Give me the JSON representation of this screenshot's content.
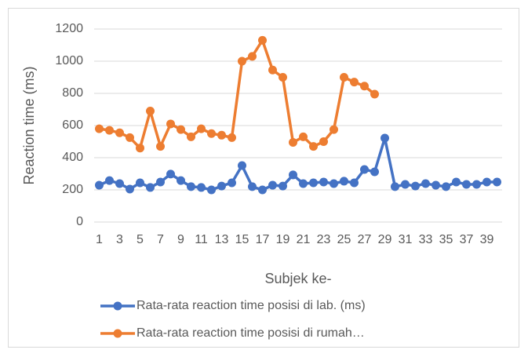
{
  "chart_data": {
    "type": "line",
    "x_label": "Subjek ke-",
    "y_label": "Reaction time (ms)",
    "categories": [
      1,
      null,
      3,
      null,
      5,
      null,
      7,
      null,
      9,
      null,
      11,
      null,
      13,
      null,
      15,
      null,
      17,
      null,
      19,
      null,
      21,
      null,
      23,
      null,
      25,
      null,
      27,
      null,
      29,
      null,
      31,
      null,
      33,
      null,
      35,
      null,
      37,
      null,
      39,
      null
    ],
    "series": [
      {
        "name": "Rata-rata reaction time posisi di lab. (ms)",
        "color": "#4472c4",
        "values": [
          229,
          258,
          239,
          205,
          244,
          215,
          249,
          298,
          258,
          220,
          215,
          200,
          224,
          244,
          351,
          220,
          200,
          229,
          224,
          293,
          239,
          244,
          249,
          239,
          254,
          244,
          327,
          312,
          522,
          220,
          234,
          224,
          239,
          229,
          220,
          249,
          234,
          234,
          249,
          249
        ]
      },
      {
        "name": "Rata-rata reaction time posisi di rumah…",
        "color": "#ed7d31",
        "values": [
          580,
          570,
          555,
          525,
          460,
          690,
          470,
          610,
          575,
          530,
          580,
          550,
          540,
          525,
          1000,
          1030,
          1130,
          945,
          900,
          495,
          530,
          470,
          500,
          575,
          900,
          870,
          845,
          795,
          null,
          null,
          null,
          null,
          null,
          null,
          null,
          null,
          null,
          null,
          null,
          null
        ]
      }
    ],
    "ylim": [
      0,
      1200
    ],
    "yticks": [
      0,
      200,
      400,
      600,
      800,
      1000,
      1200
    ],
    "grid": true,
    "legend": "bottom"
  }
}
